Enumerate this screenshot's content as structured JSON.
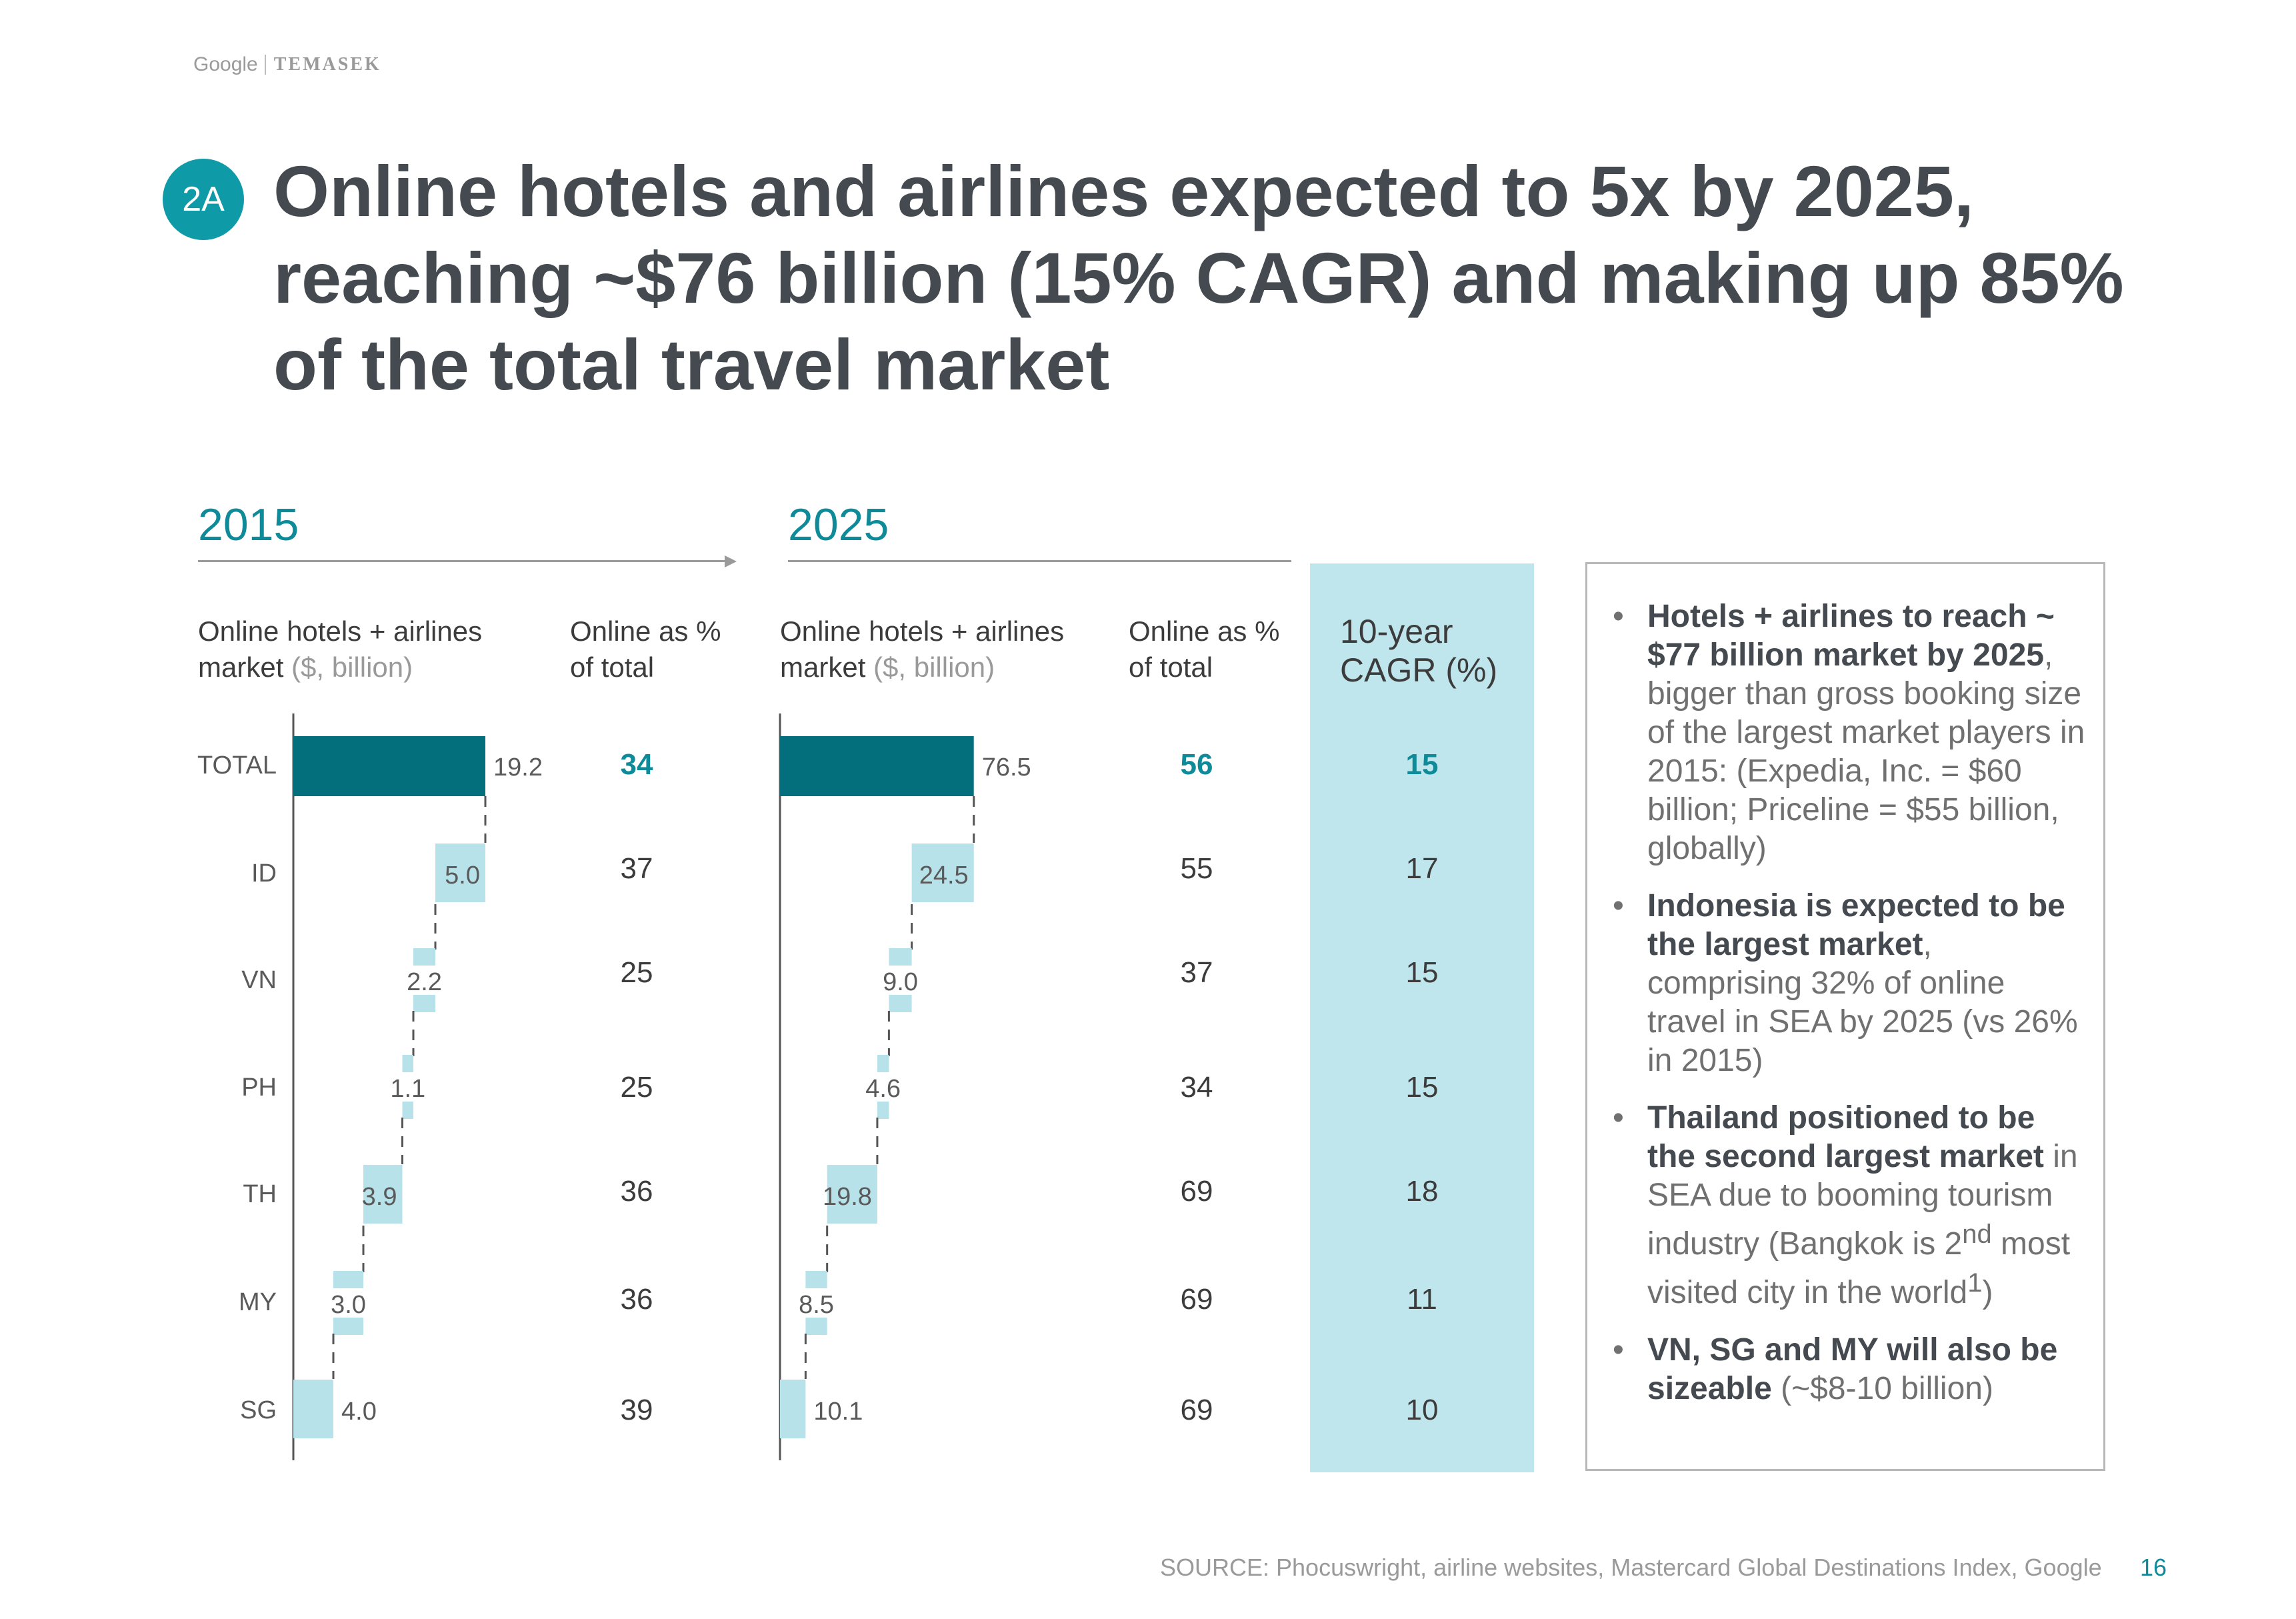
{
  "header": {
    "logo_google": "Google",
    "logo_temasek": "TEMASEK",
    "badge": "2A",
    "title_lines": [
      "Online hotels and airlines expected to 5x by 2025,",
      "reaching ~$76 billion (15% CAGR) and making up 85%",
      "of the total travel market"
    ]
  },
  "columns": {
    "year_2015": "2015",
    "year_2025": "2025",
    "market_label_1": "Online hotels + airlines",
    "market_label_2": "market ",
    "market_unit": "($, billion)",
    "online_pct_1": "Online as %",
    "online_pct_2": "of total",
    "cagr_1": "10-year",
    "cagr_2": "CAGR (%)"
  },
  "rows": [
    "TOTAL",
    "ID",
    "VN",
    "PH",
    "TH",
    "MY",
    "SG"
  ],
  "online_pct_2015": [
    "34",
    "37",
    "25",
    "25",
    "36",
    "36",
    "39"
  ],
  "online_pct_2025": [
    "56",
    "55",
    "37",
    "34",
    "69",
    "69",
    "69"
  ],
  "cagr": [
    "15",
    "17",
    "15",
    "15",
    "18",
    "11",
    "10"
  ],
  "colors": {
    "total_bar": "#046f7c",
    "country_bar": "#b7e2ea",
    "accent": "#0f8a99",
    "cagr_band": "#bfe6ed"
  },
  "chart_data": [
    {
      "type": "bar",
      "subtype": "waterfall",
      "title": "2015",
      "xlabel": "Online hotels + airlines market ($, billion)",
      "categories": [
        "TOTAL",
        "ID",
        "VN",
        "PH",
        "TH",
        "MY",
        "SG"
      ],
      "values": [
        19.2,
        5.0,
        2.2,
        1.1,
        3.9,
        3.0,
        4.0
      ],
      "labels": [
        "19.2",
        "5.0",
        "2.2",
        "1.1",
        "3.9",
        "3.0",
        "4.0"
      ],
      "xlim": [
        0,
        80
      ]
    },
    {
      "type": "bar",
      "subtype": "waterfall",
      "title": "2025",
      "xlabel": "Online hotels + airlines market ($, billion)",
      "categories": [
        "TOTAL",
        "ID",
        "VN",
        "PH",
        "TH",
        "MY",
        "SG"
      ],
      "values": [
        76.5,
        24.5,
        9.0,
        4.6,
        19.8,
        8.5,
        10.1
      ],
      "labels": [
        "76.5",
        "24.5",
        "9.0",
        "4.6",
        "19.8",
        "8.5",
        "10.1"
      ],
      "xlim": [
        0,
        80
      ]
    }
  ],
  "notes": [
    {
      "bold": "Hotels + airlines to reach ~ $77 billion market by 2025",
      "text": ", bigger than gross booking size of the largest market players in 2015: (Expedia, Inc. = $60 billion; Priceline = $55 billion, globally)"
    },
    {
      "bold": "Indonesia is expected to be the largest market",
      "text": ", comprising 32% of online travel in SEA by 2025 (vs 26% in 2015)"
    },
    {
      "bold": "Thailand positioned to be the second largest market",
      "text": " in SEA due to booming tourism industry (Bangkok is 2",
      "sup": "nd",
      "text2": " most visited city in the world",
      "sup2": "1",
      "text3": ")"
    },
    {
      "bold": "VN, SG and MY will also be sizeable",
      "text": " (~$8-10 billion)"
    }
  ],
  "footer": {
    "source": "SOURCE: Phocuswright, airline websites, Mastercard Global Destinations Index, Google",
    "page": "16"
  }
}
